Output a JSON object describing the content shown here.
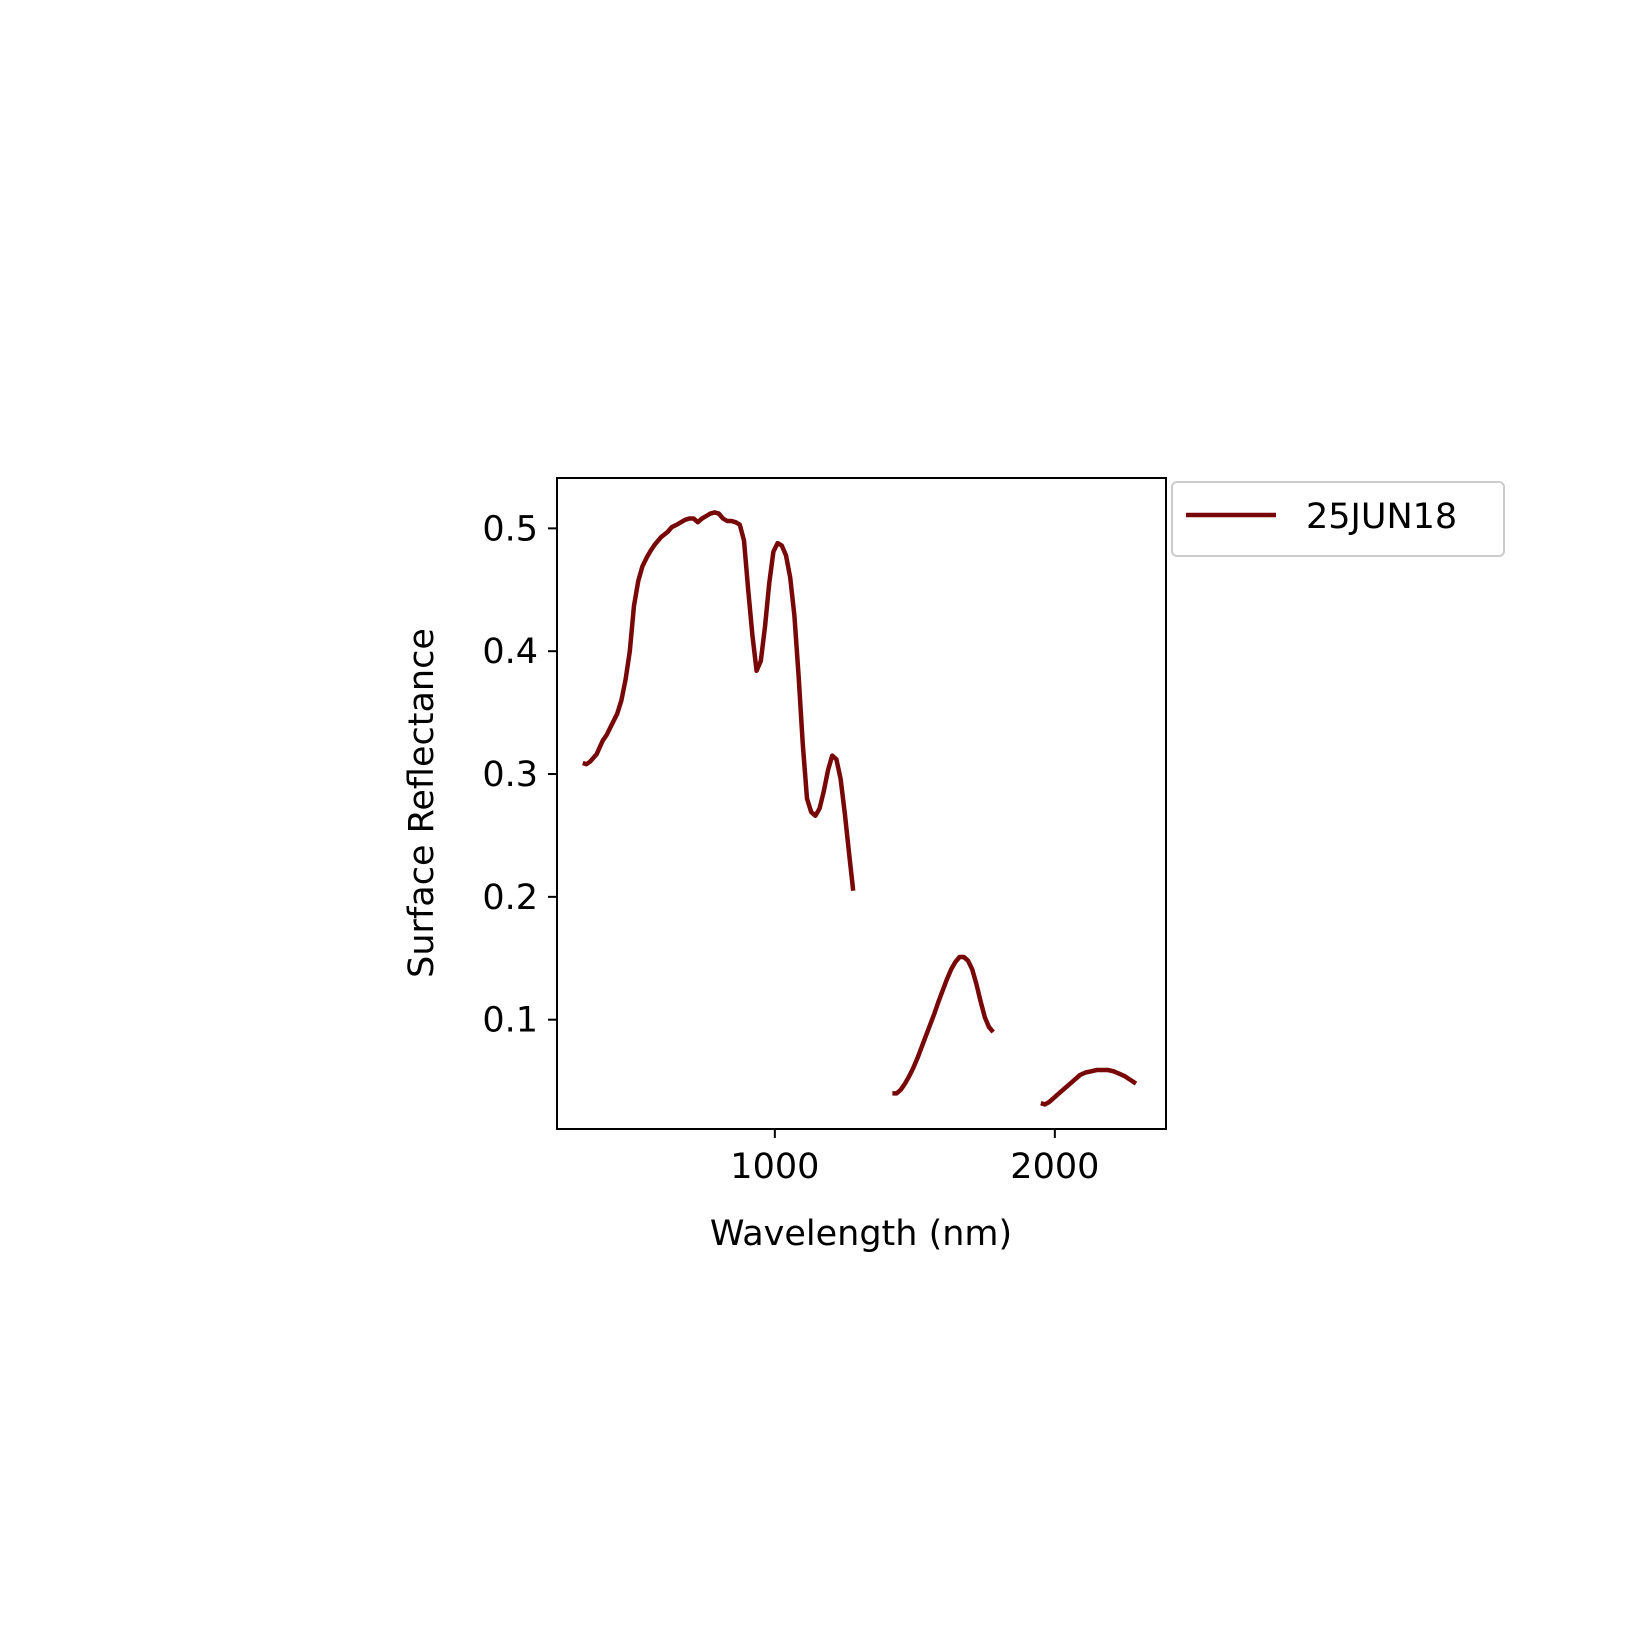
{
  "chart_data": {
    "type": "line",
    "title": "",
    "xlabel": "Wavelength (nm)",
    "ylabel": "Surface Reflectance",
    "xlim": [
      222,
      2397
    ],
    "ylim": [
      0.011,
      0.541
    ],
    "xticks": [
      1000,
      2000
    ],
    "xtick_labels": [
      "1000",
      "2000"
    ],
    "yticks": [
      0.1,
      0.2,
      0.3,
      0.4,
      0.5
    ],
    "ytick_labels": [
      "0.1",
      "0.2",
      "0.3",
      "0.4",
      "0.5"
    ],
    "grid": false,
    "legend": {
      "position": "outside-top-right",
      "entries": [
        "25JUN18"
      ]
    },
    "series": [
      {
        "name": "25JUN18",
        "color": "#780808",
        "segments": [
          [
            [
              314,
              0.309
            ],
            [
              327,
              0.308
            ],
            [
              340,
              0.31
            ],
            [
              363,
              0.316
            ],
            [
              385,
              0.327
            ],
            [
              400,
              0.332
            ],
            [
              415,
              0.339
            ],
            [
              437,
              0.349
            ],
            [
              452,
              0.36
            ],
            [
              467,
              0.377
            ],
            [
              482,
              0.4
            ],
            [
              497,
              0.437
            ],
            [
              512,
              0.457
            ],
            [
              527,
              0.469
            ],
            [
              542,
              0.476
            ],
            [
              557,
              0.482
            ],
            [
              572,
              0.487
            ],
            [
              594,
              0.493
            ],
            [
              617,
              0.497
            ],
            [
              632,
              0.501
            ],
            [
              650,
              0.503
            ],
            [
              665,
              0.505
            ],
            [
              680,
              0.507
            ],
            [
              695,
              0.508
            ],
            [
              710,
              0.508
            ],
            [
              725,
              0.505
            ],
            [
              740,
              0.508
            ],
            [
              755,
              0.51
            ],
            [
              770,
              0.512
            ],
            [
              785,
              0.513
            ],
            [
              800,
              0.512
            ],
            [
              815,
              0.508
            ],
            [
              830,
              0.506
            ],
            [
              845,
              0.506
            ],
            [
              860,
              0.505
            ],
            [
              875,
              0.503
            ],
            [
              890,
              0.49
            ],
            [
              905,
              0.45
            ],
            [
              920,
              0.413
            ],
            [
              935,
              0.384
            ],
            [
              950,
              0.392
            ],
            [
              965,
              0.42
            ],
            [
              980,
              0.455
            ],
            [
              995,
              0.481
            ],
            [
              1010,
              0.488
            ],
            [
              1025,
              0.486
            ],
            [
              1040,
              0.478
            ],
            [
              1055,
              0.46
            ],
            [
              1070,
              0.429
            ],
            [
              1085,
              0.38
            ],
            [
              1100,
              0.324
            ],
            [
              1115,
              0.28
            ],
            [
              1130,
              0.269
            ],
            [
              1145,
              0.266
            ],
            [
              1160,
              0.272
            ],
            [
              1175,
              0.286
            ],
            [
              1190,
              0.303
            ],
            [
              1205,
              0.315
            ],
            [
              1220,
              0.312
            ],
            [
              1235,
              0.296
            ],
            [
              1250,
              0.268
            ],
            [
              1265,
              0.236
            ],
            [
              1280,
              0.205
            ]
          ],
          [
            [
              1420,
              0.04
            ],
            [
              1435,
              0.04
            ],
            [
              1450,
              0.043
            ],
            [
              1465,
              0.048
            ],
            [
              1480,
              0.054
            ],
            [
              1495,
              0.061
            ],
            [
              1510,
              0.069
            ],
            [
              1525,
              0.078
            ],
            [
              1540,
              0.087
            ],
            [
              1555,
              0.096
            ],
            [
              1570,
              0.105
            ],
            [
              1585,
              0.115
            ],
            [
              1600,
              0.124
            ],
            [
              1615,
              0.133
            ],
            [
              1630,
              0.141
            ],
            [
              1645,
              0.147
            ],
            [
              1660,
              0.151
            ],
            [
              1675,
              0.151
            ],
            [
              1690,
              0.148
            ],
            [
              1705,
              0.141
            ],
            [
              1720,
              0.129
            ],
            [
              1735,
              0.115
            ],
            [
              1750,
              0.102
            ],
            [
              1765,
              0.094
            ],
            [
              1780,
              0.09
            ]
          ],
          [
            [
              1950,
              0.032
            ],
            [
              1965,
              0.031
            ],
            [
              1980,
              0.033
            ],
            [
              1995,
              0.036
            ],
            [
              2010,
              0.039
            ],
            [
              2030,
              0.043
            ],
            [
              2050,
              0.047
            ],
            [
              2070,
              0.051
            ],
            [
              2090,
              0.055
            ],
            [
              2110,
              0.057
            ],
            [
              2130,
              0.058
            ],
            [
              2150,
              0.059
            ],
            [
              2170,
              0.059
            ],
            [
              2190,
              0.059
            ],
            [
              2210,
              0.058
            ],
            [
              2230,
              0.056
            ],
            [
              2250,
              0.054
            ],
            [
              2270,
              0.051
            ],
            [
              2290,
              0.048
            ]
          ]
        ]
      }
    ]
  }
}
